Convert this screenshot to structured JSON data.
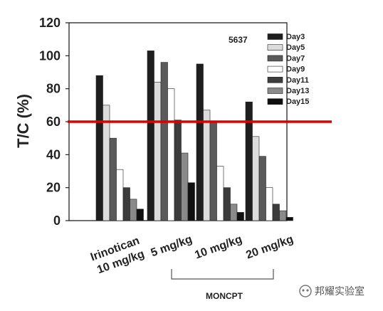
{
  "chart_data": {
    "type": "bar",
    "ylabel": "T/C (%)",
    "ylim": [
      0,
      120
    ],
    "yticks": [
      0,
      20,
      40,
      60,
      80,
      100,
      120
    ],
    "annotation": "5637",
    "categories": [
      {
        "line1": "Irinotican",
        "line2": "10 mg/kg"
      },
      {
        "line1": "5 mg/kg",
        "line2": ""
      },
      {
        "line1": "10 mg/kg",
        "line2": ""
      },
      {
        "line1": "20 mg/kg",
        "line2": ""
      }
    ],
    "series": [
      {
        "name": "Day3",
        "color": "#1e1e1e",
        "values": [
          88,
          103,
          95,
          72
        ]
      },
      {
        "name": "Day5",
        "color": "#dcdcdc",
        "values": [
          70,
          84,
          67,
          51
        ]
      },
      {
        "name": "Day7",
        "color": "#5a5a5a",
        "values": [
          50,
          96,
          60,
          39
        ]
      },
      {
        "name": "Day9",
        "color": "#ffffff",
        "values": [
          31,
          80,
          33,
          20
        ]
      },
      {
        "name": "Day11",
        "color": "#3c3c3c",
        "values": [
          20,
          61,
          20,
          10
        ]
      },
      {
        "name": "Day13",
        "color": "#8a8a8a",
        "values": [
          13,
          41,
          10,
          6
        ]
      },
      {
        "name": "Day15",
        "color": "#0f0f0f",
        "values": [
          7,
          23,
          5,
          2
        ]
      }
    ],
    "reference_line": {
      "value": 60,
      "color": "#dd0000"
    },
    "group_label": "MONCPT",
    "grid": false,
    "legend_position": "top-right"
  },
  "watermark": {
    "text": "邦耀实验室"
  }
}
